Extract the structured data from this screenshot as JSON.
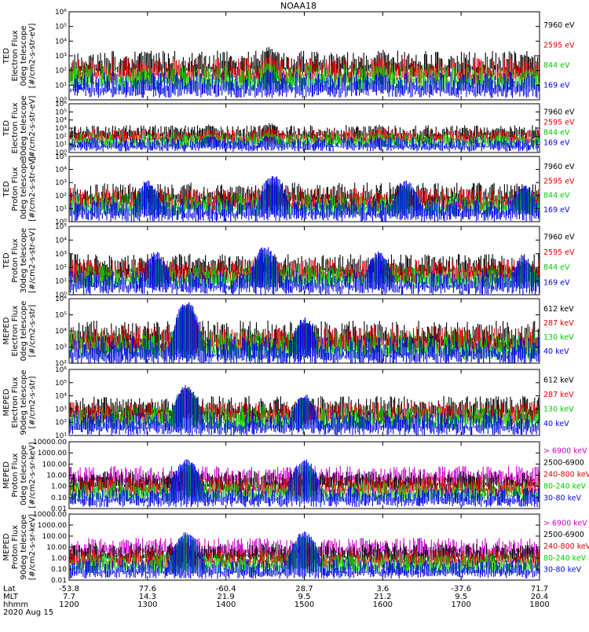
{
  "title": "NOAA18",
  "chart_data": [
    {
      "type": "line",
      "ylabel": [
        "TED",
        "Electron Flux",
        "0deg telescope",
        "[#/cm2-s-str-eV]"
      ],
      "yscale": "log",
      "ylim": [
        1,
        1000000
      ],
      "ytick_labels": [
        "10⁰",
        "10¹",
        "10²",
        "10³",
        "10⁴",
        "10⁵",
        "10⁶"
      ],
      "legend": [
        {
          "label": "7960 eV",
          "color": "#000000"
        },
        {
          "label": "2595 eV",
          "color": "#e00000"
        },
        {
          "label": "844 eV",
          "color": "#00cc00"
        },
        {
          "label": "169 eV",
          "color": "#0000ee"
        }
      ],
      "passes": [
        {
          "t": 12.95,
          "amp": [
            1500,
            300,
            100,
            30
          ]
        },
        {
          "t": 14.55,
          "amp": [
            3000,
            1000,
            300,
            100
          ]
        },
        {
          "t": 15.98,
          "amp": [
            2000,
            700,
            200,
            60
          ]
        },
        {
          "t": 17.85,
          "amp": [
            1000,
            300,
            100,
            30
          ]
        }
      ]
    },
    {
      "type": "line",
      "ylabel": [
        "TED",
        "Electron Flux",
        "30deg telescope",
        "[#/cm2-s-str-eV]"
      ],
      "yscale": "log",
      "ylim": [
        1,
        1000000
      ],
      "ytick_labels": [
        "10⁰",
        "10¹",
        "10²",
        "10³",
        "10⁴",
        "10⁵",
        "10⁶"
      ],
      "legend": [
        {
          "label": "7960 eV",
          "color": "#000000"
        },
        {
          "label": "2595 eV",
          "color": "#e00000"
        },
        {
          "label": "844 eV",
          "color": "#00cc00"
        },
        {
          "label": "169 eV",
          "color": "#0000ee"
        }
      ],
      "passes": [
        {
          "t": 13.8,
          "amp": [
            2000,
            500,
            200,
            100
          ]
        },
        {
          "t": 14.55,
          "amp": [
            3000,
            1000,
            300,
            100
          ]
        },
        {
          "t": 15.95,
          "amp": [
            2000,
            600,
            200,
            60
          ]
        },
        {
          "t": 17.5,
          "amp": [
            1000,
            300,
            100,
            30
          ]
        }
      ]
    },
    {
      "type": "line",
      "ylabel": [
        "TED",
        "Proton Flux",
        "0deg telescope",
        "[#/cm2-s-str-eV]"
      ],
      "yscale": "log",
      "ylim": [
        1,
        100000
      ],
      "ytick_labels": [
        "10⁰",
        "10¹",
        "10²",
        "10³",
        "10⁴",
        "10⁵"
      ],
      "legend": [
        {
          "label": "7960 eV",
          "color": "#000000"
        },
        {
          "label": "2595 eV",
          "color": "#e00000"
        },
        {
          "label": "844 eV",
          "color": "#00cc00"
        },
        {
          "label": "169 eV",
          "color": "#0000ee"
        }
      ],
      "passes": [
        {
          "t": 13.0,
          "amp": [
            200,
            300,
            500,
            1000
          ]
        },
        {
          "t": 14.6,
          "amp": [
            300,
            500,
            1000,
            3000
          ]
        },
        {
          "t": 16.3,
          "amp": [
            100,
            200,
            500,
            1000
          ]
        },
        {
          "t": 17.8,
          "amp": [
            100,
            200,
            300,
            500
          ]
        }
      ]
    },
    {
      "type": "line",
      "ylabel": [
        "TED",
        "Proton Flux",
        "30deg telescope",
        "[#/cm2-s-str-eV]"
      ],
      "yscale": "log",
      "ylim": [
        1,
        100000
      ],
      "ytick_labels": [
        "10⁰",
        "10¹",
        "10²",
        "10³",
        "10⁴",
        "10⁵"
      ],
      "legend": [
        {
          "label": "7960 eV",
          "color": "#000000"
        },
        {
          "label": "2595 eV",
          "color": "#e00000"
        },
        {
          "label": "844 eV",
          "color": "#00cc00"
        },
        {
          "label": "169 eV",
          "color": "#0000ee"
        }
      ],
      "passes": [
        {
          "t": 13.1,
          "amp": [
            50,
            80,
            300,
            1000
          ]
        },
        {
          "t": 14.5,
          "amp": [
            100,
            200,
            1000,
            3000
          ]
        },
        {
          "t": 15.95,
          "amp": [
            50,
            100,
            500,
            1000
          ]
        },
        {
          "t": 17.8,
          "amp": [
            50,
            100,
            300,
            500
          ]
        }
      ]
    },
    {
      "type": "line",
      "ylabel": [
        "MEPED",
        "Electron Flux",
        "0deg telescope",
        "[#/cm2-s-str]"
      ],
      "yscale": "log",
      "ylim": [
        100,
        1000000
      ],
      "ytick_labels": [
        "10²",
        "10³",
        "10⁴",
        "10⁵",
        "10⁶"
      ],
      "legend": [
        {
          "label": "612 keV",
          "color": "#000000"
        },
        {
          "label": "287 keV",
          "color": "#e00000"
        },
        {
          "label": "130 keV",
          "color": "#00cc00"
        },
        {
          "label": "40 keV",
          "color": "#0000ee"
        }
      ],
      "passes": [
        {
          "t": 13.5,
          "amp": [
            200000,
            300000,
            400000,
            500000
          ]
        },
        {
          "t": 15.0,
          "amp": [
            20000,
            30000,
            40000,
            50000
          ]
        }
      ]
    },
    {
      "type": "line",
      "ylabel": [
        "MEPED",
        "Electron Flux",
        "90deg telescope",
        "[#/cm2-s-str]"
      ],
      "yscale": "log",
      "ylim": [
        10,
        1000000
      ],
      "ytick_labels": [
        "10¹",
        "10²",
        "10³",
        "10⁴",
        "10⁵",
        "10⁶"
      ],
      "legend": [
        {
          "label": "612 keV",
          "color": "#000000"
        },
        {
          "label": "287 keV",
          "color": "#e00000"
        },
        {
          "label": "130 keV",
          "color": "#00cc00"
        },
        {
          "label": "40 keV",
          "color": "#0000ee"
        }
      ],
      "passes": [
        {
          "t": 13.5,
          "amp": [
            20000,
            30000,
            40000,
            50000
          ]
        },
        {
          "t": 15.0,
          "amp": [
            3000,
            5000,
            8000,
            10000
          ]
        }
      ]
    },
    {
      "type": "line",
      "ylabel": [
        "MEPED",
        "Proton Flux",
        "0deg telescope",
        "[#/cm2-s-sr-keV]"
      ],
      "yscale": "log",
      "ylim": [
        0.01,
        10000
      ],
      "ytick_labels": [
        "0.01",
        "0.10",
        "1.00",
        "10.00",
        "100.00",
        "1000.00",
        "10000.00"
      ],
      "legend": [
        {
          "label": "> 6900 keV",
          "color": "#cc00cc"
        },
        {
          "label": "2500-6900",
          "color": "#000000"
        },
        {
          "label": "240-800 keV",
          "color": "#e00000"
        },
        {
          "label": "80-240 keV",
          "color": "#00cc00"
        },
        {
          "label": "30-80 keV",
          "color": "#0000ee"
        }
      ],
      "passes": [
        {
          "t": 13.5,
          "amp": [
            0.3,
            2,
            20,
            100,
            200
          ]
        },
        {
          "t": 15.0,
          "amp": [
            0.3,
            2,
            20,
            100,
            200
          ]
        }
      ]
    },
    {
      "type": "line",
      "ylabel": [
        "MEPED",
        "Proton Flux",
        "90deg telescope",
        "[#/cm2-s-sr-keV]"
      ],
      "yscale": "log",
      "ylim": [
        0.01,
        10000
      ],
      "ytick_labels": [
        "0.01",
        "0.10",
        "1.00",
        "10.00",
        "100.00",
        "1000.00",
        "10000.00"
      ],
      "legend": [
        {
          "label": "> 6900 keV",
          "color": "#cc00cc"
        },
        {
          "label": "2500-6900",
          "color": "#000000"
        },
        {
          "label": "240-800 keV",
          "color": "#e00000"
        },
        {
          "label": "80-240 keV",
          "color": "#00cc00"
        },
        {
          "label": "30-80 keV",
          "color": "#0000ee"
        }
      ],
      "passes": [
        {
          "t": 13.5,
          "amp": [
            0.3,
            2,
            20,
            100,
            200
          ]
        },
        {
          "t": 15.0,
          "amp": [
            0.3,
            2,
            20,
            100,
            200
          ]
        }
      ]
    }
  ],
  "xaxis": {
    "range": [
      12.0,
      18.0
    ],
    "row_labels": [
      "Lat",
      "MLT",
      "hhmm"
    ],
    "ticks": [
      {
        "t": 12.0,
        "lat": "-53.8",
        "mlt": "7.7",
        "hhmm": "1200"
      },
      {
        "t": 13.0,
        "lat": "77.6",
        "mlt": "14.3",
        "hhmm": "1300"
      },
      {
        "t": 14.0,
        "lat": "-60.4",
        "mlt": "21.9",
        "hhmm": "1400"
      },
      {
        "t": 15.0,
        "lat": "28.7",
        "mlt": "9.5",
        "hhmm": "1500"
      },
      {
        "t": 16.0,
        "lat": "3.6",
        "mlt": "21.2",
        "hhmm": "1600"
      },
      {
        "t": 17.0,
        "lat": "-37.6",
        "mlt": "9.5",
        "hhmm": "1700"
      },
      {
        "t": 18.0,
        "lat": "71.7",
        "mlt": "20.4",
        "hhmm": "1800"
      }
    ],
    "date": "2020 Aug 15"
  }
}
